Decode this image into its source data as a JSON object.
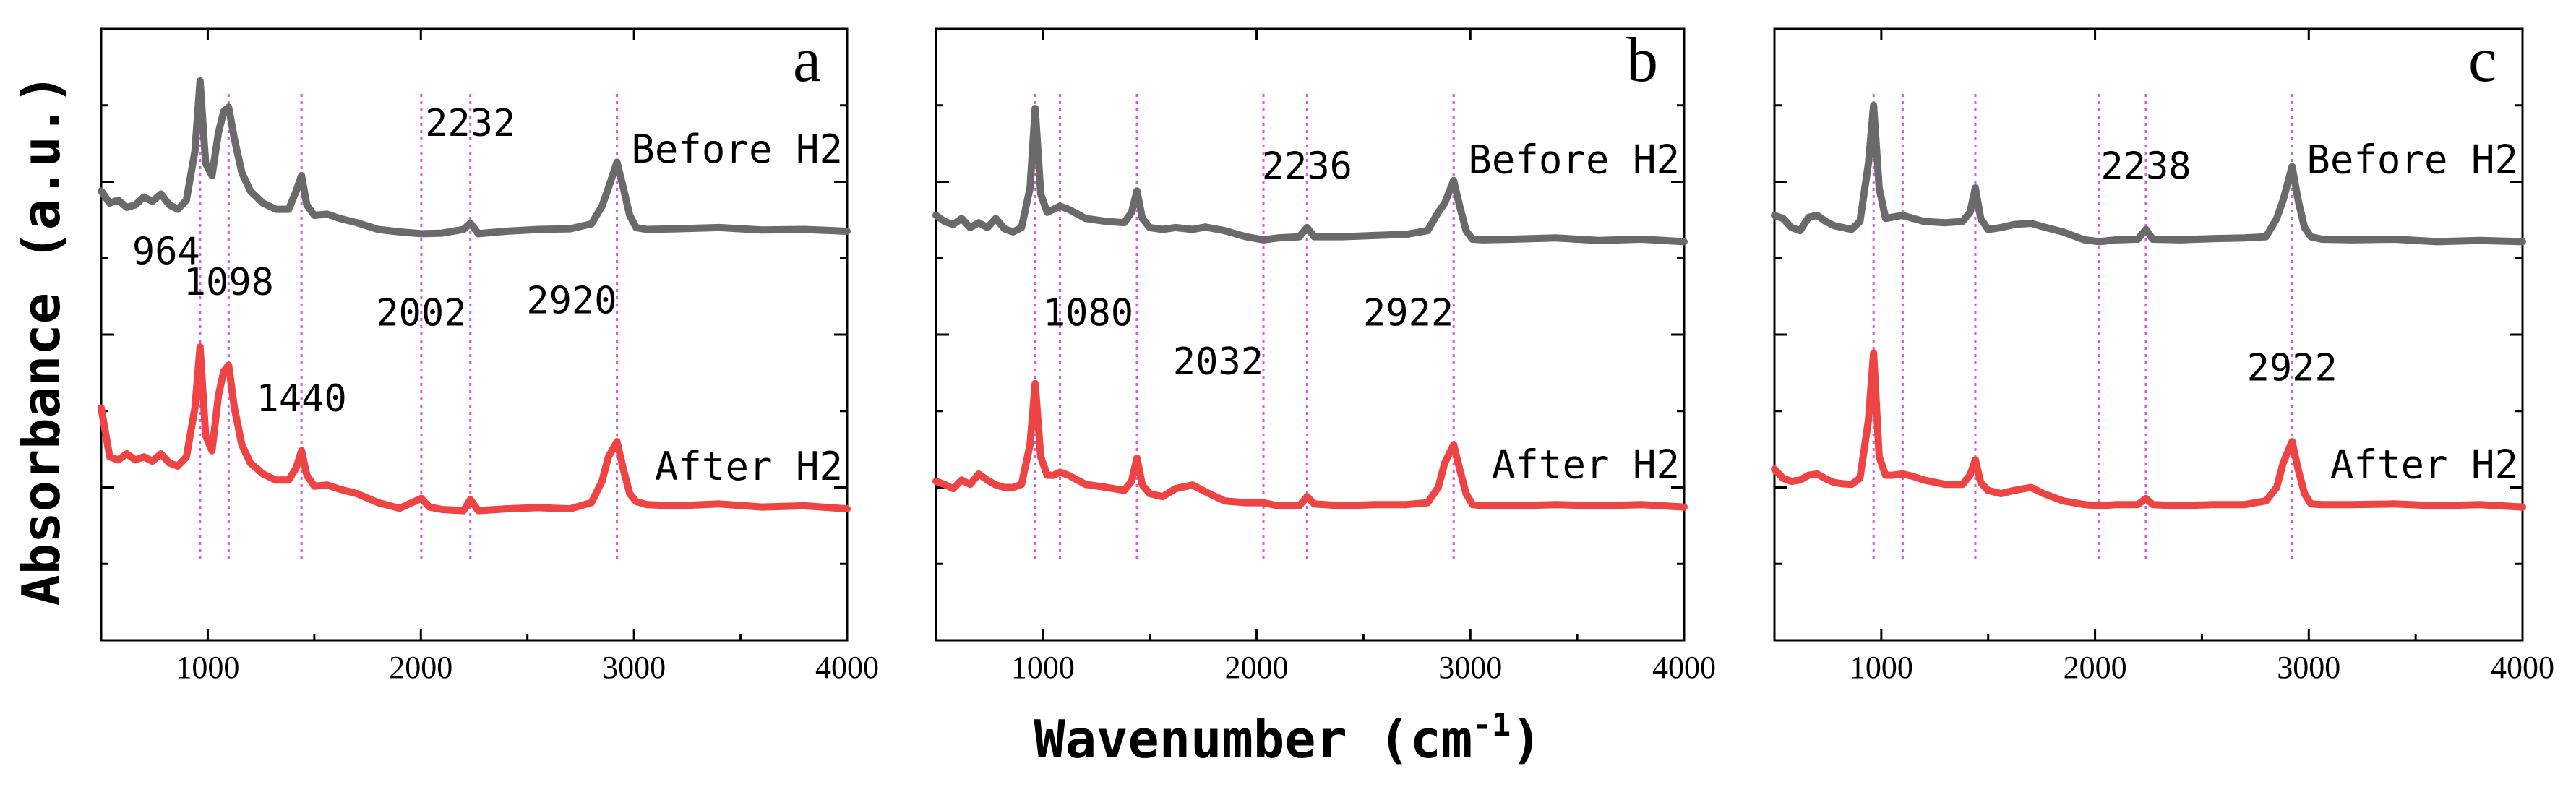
{
  "chart_data": {
    "type": "line",
    "shared": {
      "xlabel": "Wavenumber (cm",
      "xlabel_sup": "-1",
      "xlabel_close": ")",
      "ylabel": "Absorbance (a.u.)",
      "xlim": [
        500,
        4000
      ],
      "xticks": [
        1000,
        2000,
        3000,
        4000
      ],
      "xtick_labels": [
        "1000",
        "2000",
        "3000",
        "4000"
      ],
      "minor_xtick_step": 500,
      "ylim": [
        0,
        1
      ],
      "series_names": [
        "Before H2",
        "After H2"
      ],
      "series_colors": {
        "before": "#6a6a6a",
        "after": "#ee4444"
      },
      "guide_color": "#dd55dd"
    },
    "panels": [
      {
        "letter": "a",
        "before_label": "Before H2",
        "after_label": "After H2",
        "before": {
          "x": [
            500,
            540,
            580,
            620,
            660,
            700,
            740,
            780,
            820,
            860,
            900,
            940,
            964,
            990,
            1020,
            1050,
            1075,
            1098,
            1125,
            1160,
            1200,
            1260,
            1320,
            1380,
            1415,
            1440,
            1465,
            1500,
            1560,
            1620,
            1700,
            1800,
            1900,
            2002,
            2100,
            2200,
            2232,
            2270,
            2400,
            2550,
            2700,
            2800,
            2850,
            2880,
            2920,
            2950,
            2980,
            3010,
            3060,
            3200,
            3400,
            3600,
            3800,
            4000
          ],
          "y": [
            0.735,
            0.715,
            0.72,
            0.708,
            0.712,
            0.725,
            0.718,
            0.73,
            0.712,
            0.705,
            0.72,
            0.8,
            0.915,
            0.78,
            0.76,
            0.83,
            0.865,
            0.872,
            0.82,
            0.765,
            0.735,
            0.715,
            0.705,
            0.705,
            0.735,
            0.76,
            0.712,
            0.695,
            0.697,
            0.69,
            0.683,
            0.672,
            0.668,
            0.665,
            0.666,
            0.672,
            0.682,
            0.665,
            0.669,
            0.672,
            0.673,
            0.681,
            0.71,
            0.74,
            0.782,
            0.74,
            0.695,
            0.675,
            0.672,
            0.673,
            0.675,
            0.671,
            0.672,
            0.669
          ]
        },
        "after": {
          "x": [
            500,
            540,
            580,
            620,
            660,
            700,
            740,
            780,
            820,
            860,
            900,
            940,
            964,
            990,
            1020,
            1050,
            1075,
            1098,
            1125,
            1160,
            1200,
            1260,
            1320,
            1380,
            1415,
            1440,
            1465,
            1500,
            1560,
            1620,
            1700,
            1800,
            1900,
            2002,
            2040,
            2100,
            2200,
            2232,
            2270,
            2400,
            2550,
            2700,
            2800,
            2850,
            2880,
            2920,
            2950,
            2980,
            3010,
            3060,
            3200,
            3400,
            3600,
            3800,
            4000
          ],
          "y": [
            0.38,
            0.3,
            0.295,
            0.305,
            0.295,
            0.3,
            0.293,
            0.305,
            0.29,
            0.285,
            0.3,
            0.38,
            0.48,
            0.335,
            0.31,
            0.4,
            0.44,
            0.45,
            0.38,
            0.32,
            0.29,
            0.272,
            0.262,
            0.262,
            0.282,
            0.31,
            0.27,
            0.252,
            0.254,
            0.247,
            0.24,
            0.225,
            0.216,
            0.232,
            0.218,
            0.214,
            0.212,
            0.23,
            0.212,
            0.215,
            0.217,
            0.215,
            0.225,
            0.26,
            0.3,
            0.325,
            0.28,
            0.24,
            0.227,
            0.222,
            0.22,
            0.223,
            0.218,
            0.22,
            0.215
          ]
        },
        "guides": [
          964,
          1098,
          1440,
          2002,
          2232,
          2920
        ],
        "peak_labels": [
          {
            "text": "964",
            "x": 964,
            "y": 0.615,
            "align": "end"
          },
          {
            "text": "1098",
            "x": 1098,
            "y": 0.565,
            "align": "middle"
          },
          {
            "text": "1440",
            "x": 1440,
            "y": 0.375,
            "align": "middle"
          },
          {
            "text": "2002",
            "x": 2002,
            "y": 0.515,
            "align": "middle"
          },
          {
            "text": "2232",
            "x": 2232,
            "y": 0.825,
            "align": "middle"
          },
          {
            "text": "2920",
            "x": 2920,
            "y": 0.535,
            "align": "end"
          }
        ]
      },
      {
        "letter": "b",
        "before_label": "Before H2",
        "after_label": "After H2",
        "before": {
          "x": [
            500,
            540,
            580,
            620,
            660,
            700,
            740,
            780,
            820,
            860,
            900,
            940,
            964,
            990,
            1020,
            1050,
            1080,
            1120,
            1200,
            1300,
            1380,
            1415,
            1440,
            1465,
            1500,
            1560,
            1620,
            1700,
            1760,
            1850,
            1950,
            2032,
            2100,
            2200,
            2236,
            2270,
            2400,
            2550,
            2700,
            2800,
            2850,
            2880,
            2922,
            2950,
            2980,
            3010,
            3060,
            3200,
            3400,
            3600,
            3800,
            4000
          ],
          "y": [
            0.695,
            0.685,
            0.68,
            0.69,
            0.675,
            0.683,
            0.675,
            0.69,
            0.673,
            0.668,
            0.675,
            0.74,
            0.87,
            0.73,
            0.7,
            0.705,
            0.71,
            0.705,
            0.69,
            0.685,
            0.683,
            0.7,
            0.735,
            0.69,
            0.675,
            0.672,
            0.675,
            0.672,
            0.676,
            0.67,
            0.66,
            0.655,
            0.658,
            0.66,
            0.675,
            0.66,
            0.66,
            0.662,
            0.664,
            0.67,
            0.7,
            0.715,
            0.752,
            0.71,
            0.67,
            0.656,
            0.655,
            0.656,
            0.658,
            0.654,
            0.656,
            0.652
          ]
        },
        "after": {
          "x": [
            500,
            540,
            580,
            620,
            660,
            700,
            740,
            780,
            820,
            860,
            900,
            940,
            964,
            990,
            1020,
            1050,
            1080,
            1120,
            1200,
            1300,
            1380,
            1415,
            1440,
            1465,
            1500,
            1560,
            1620,
            1700,
            1760,
            1850,
            1950,
            2032,
            2100,
            2200,
            2236,
            2270,
            2400,
            2550,
            2700,
            2800,
            2850,
            2880,
            2922,
            2950,
            2980,
            3010,
            3060,
            3200,
            3400,
            3600,
            3800,
            4000
          ],
          "y": [
            0.26,
            0.255,
            0.248,
            0.262,
            0.255,
            0.272,
            0.262,
            0.254,
            0.25,
            0.25,
            0.255,
            0.32,
            0.42,
            0.3,
            0.27,
            0.27,
            0.275,
            0.27,
            0.255,
            0.25,
            0.245,
            0.26,
            0.298,
            0.254,
            0.24,
            0.235,
            0.248,
            0.254,
            0.243,
            0.228,
            0.225,
            0.225,
            0.22,
            0.22,
            0.235,
            0.223,
            0.22,
            0.222,
            0.222,
            0.225,
            0.25,
            0.29,
            0.32,
            0.28,
            0.24,
            0.222,
            0.22,
            0.22,
            0.222,
            0.22,
            0.222,
            0.218
          ]
        },
        "guides": [
          964,
          1080,
          1440,
          2032,
          2236,
          2922
        ],
        "peak_labels": [
          {
            "text": "1080",
            "x": 1000,
            "y": 0.515,
            "align": "start"
          },
          {
            "text": "2032",
            "x": 2032,
            "y": 0.435,
            "align": "end"
          },
          {
            "text": "2236",
            "x": 2236,
            "y": 0.755,
            "align": "middle"
          },
          {
            "text": "2922",
            "x": 2922,
            "y": 0.515,
            "align": "end"
          }
        ]
      },
      {
        "letter": "c",
        "before_label": "Before H2",
        "after_label": "After H2",
        "before": {
          "x": [
            500,
            540,
            580,
            620,
            660,
            700,
            740,
            780,
            820,
            860,
            900,
            940,
            964,
            990,
            1020,
            1050,
            1100,
            1150,
            1200,
            1300,
            1380,
            1415,
            1440,
            1465,
            1500,
            1560,
            1620,
            1700,
            1760,
            1850,
            1950,
            2020,
            2100,
            2200,
            2238,
            2270,
            2400,
            2550,
            2700,
            2800,
            2850,
            2880,
            2922,
            2950,
            2980,
            3010,
            3060,
            3200,
            3400,
            3600,
            3800,
            4000
          ],
          "y": [
            0.695,
            0.69,
            0.675,
            0.67,
            0.692,
            0.695,
            0.685,
            0.678,
            0.675,
            0.672,
            0.685,
            0.78,
            0.875,
            0.74,
            0.69,
            0.692,
            0.695,
            0.69,
            0.685,
            0.683,
            0.685,
            0.7,
            0.74,
            0.69,
            0.672,
            0.675,
            0.68,
            0.682,
            0.676,
            0.668,
            0.655,
            0.652,
            0.655,
            0.656,
            0.672,
            0.656,
            0.655,
            0.657,
            0.658,
            0.66,
            0.69,
            0.72,
            0.775,
            0.72,
            0.675,
            0.66,
            0.656,
            0.655,
            0.656,
            0.652,
            0.654,
            0.652
          ]
        },
        "after": {
          "x": [
            500,
            540,
            580,
            620,
            660,
            700,
            740,
            780,
            820,
            860,
            900,
            940,
            964,
            990,
            1020,
            1050,
            1100,
            1150,
            1200,
            1300,
            1380,
            1415,
            1440,
            1465,
            1500,
            1560,
            1620,
            1700,
            1760,
            1850,
            1950,
            2020,
            2100,
            2200,
            2238,
            2270,
            2400,
            2550,
            2700,
            2800,
            2850,
            2880,
            2922,
            2950,
            2980,
            3010,
            3060,
            3200,
            3400,
            3600,
            3800,
            4000
          ],
          "y": [
            0.28,
            0.265,
            0.26,
            0.262,
            0.27,
            0.272,
            0.264,
            0.258,
            0.256,
            0.255,
            0.265,
            0.36,
            0.47,
            0.3,
            0.27,
            0.27,
            0.272,
            0.268,
            0.262,
            0.255,
            0.255,
            0.27,
            0.295,
            0.258,
            0.245,
            0.24,
            0.245,
            0.25,
            0.24,
            0.228,
            0.222,
            0.22,
            0.222,
            0.222,
            0.232,
            0.222,
            0.22,
            0.222,
            0.222,
            0.228,
            0.25,
            0.29,
            0.325,
            0.28,
            0.24,
            0.223,
            0.222,
            0.222,
            0.223,
            0.22,
            0.222,
            0.218
          ]
        },
        "guides": [
          964,
          1100,
          1440,
          2020,
          2238,
          2922
        ],
        "peak_labels": [
          {
            "text": "2238",
            "x": 2238,
            "y": 0.755,
            "align": "middle"
          },
          {
            "text": "2922",
            "x": 2922,
            "y": 0.425,
            "align": "middle"
          }
        ]
      }
    ]
  }
}
